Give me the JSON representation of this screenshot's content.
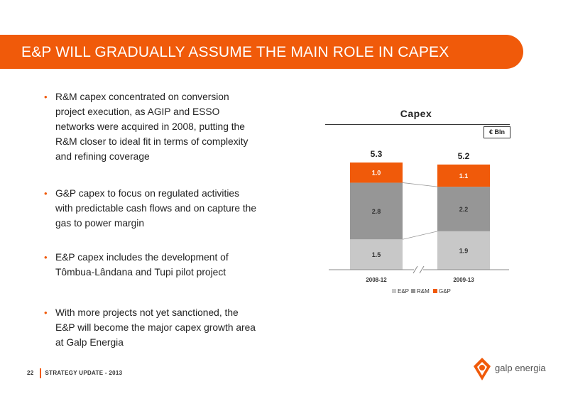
{
  "header": {
    "title": "E&P WILL GRADUALLY ASSUME THE MAIN ROLE IN CAPEX"
  },
  "bullets": [
    {
      "text": "R&M capex concentrated on conversion project execution, as AGIP and ESSO networks were acquired in 2008, putting the R&M closer to ideal fit in terms of complexity and refining coverage"
    },
    {
      "text": "G&P capex to focus on regulated activities with predictable cash flows and on capture the gas to power margin"
    },
    {
      "text": "E&P capex includes the development of Tômbua-Lândana and Tupi pilot project"
    },
    {
      "text": "With more projects not yet sanctioned, the E&P will become the major capex growth area at Galp Energia"
    }
  ],
  "bullet_marker": "•",
  "chart_data": {
    "type": "bar",
    "stacked": true,
    "title": "Capex",
    "unit": "€ Bln",
    "categories": [
      "2008-12",
      "2009-13"
    ],
    "totals": [
      "5.3",
      "5.2"
    ],
    "series": [
      {
        "name": "E&P",
        "values": [
          1.5,
          1.9
        ],
        "labels": [
          "1.5",
          "1.9"
        ],
        "color": "#c8c8c8"
      },
      {
        "name": "R&M",
        "values": [
          2.8,
          2.2
        ],
        "labels": [
          "2.8",
          "2.2"
        ],
        "color": "#969696"
      },
      {
        "name": "G&P",
        "values": [
          1.0,
          1.1
        ],
        "labels": [
          "1.0",
          "1.1"
        ],
        "color": "#f05a0a"
      }
    ],
    "legend_position": "bottom",
    "axis_break": true
  },
  "footer": {
    "page": "22",
    "label": "STRATEGY UPDATE - 2013"
  },
  "logo": {
    "text": "galp energia"
  },
  "colors": {
    "accent": "#f05a0a",
    "ep": "#c8c8c8",
    "rm": "#969696",
    "gp": "#f05a0a"
  }
}
